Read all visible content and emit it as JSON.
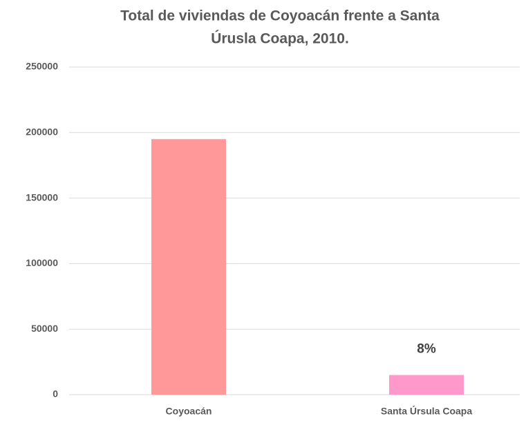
{
  "chart_data": {
    "type": "bar",
    "title": [
      "Total de viviendas de Coyoacán frente a Santa",
      "Úrusla Coapa, 2010."
    ],
    "categories": [
      "Coyoacán",
      "Santa Úrsula Coapa"
    ],
    "values": [
      195000,
      15000
    ],
    "colors": [
      "#ff9999",
      "#ff99cc"
    ],
    "ylim": [
      0,
      250000
    ],
    "yticks": [
      0,
      50000,
      100000,
      150000,
      200000,
      250000
    ],
    "grid": true,
    "annotations": [
      {
        "text": "8%",
        "category": 1
      }
    ]
  }
}
